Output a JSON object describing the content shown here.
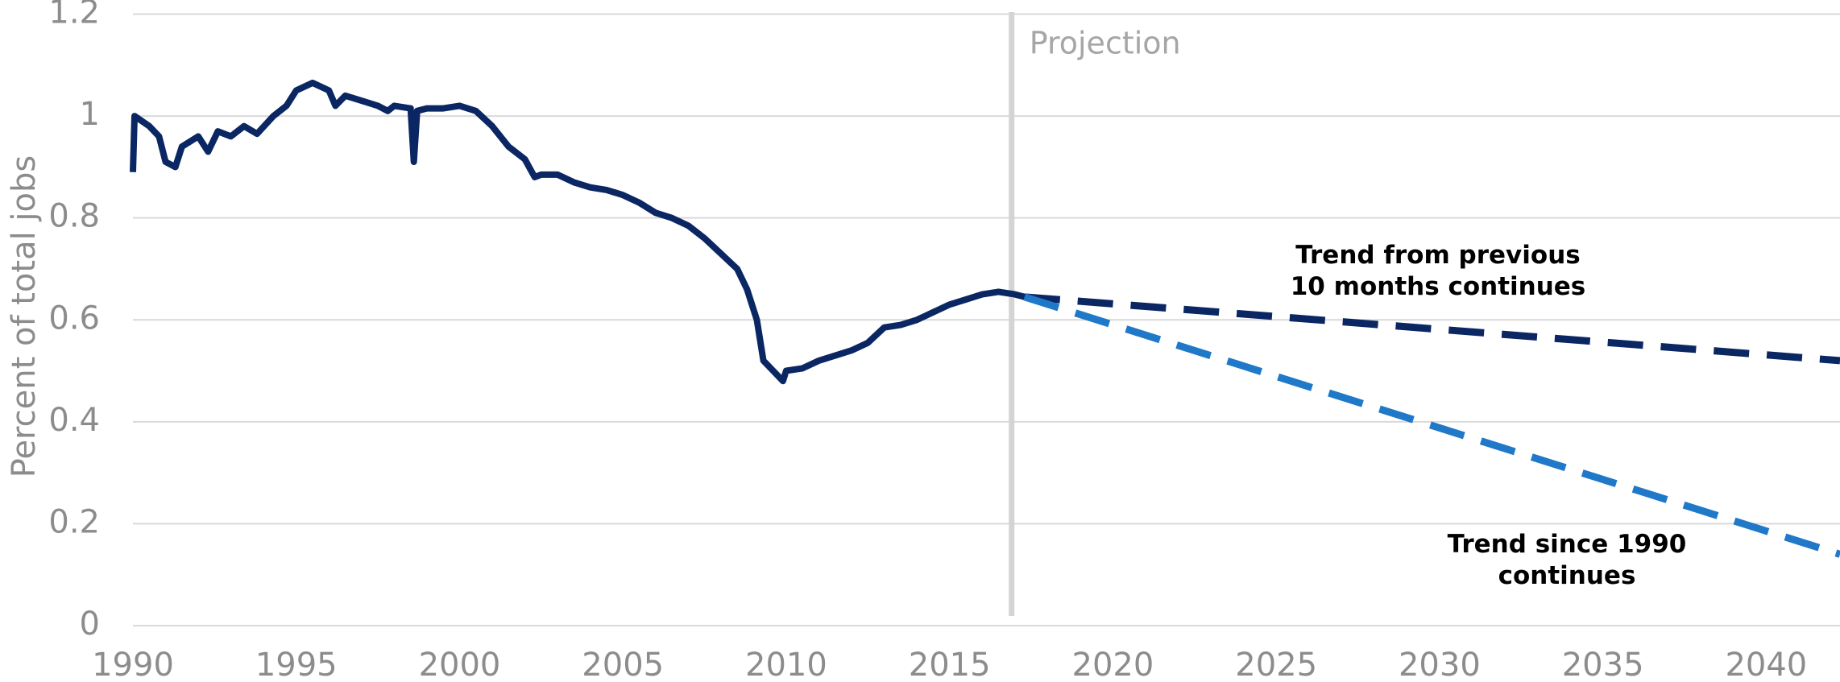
{
  "chart_data": {
    "type": "line",
    "y_label": "Percent of total jobs",
    "xlim": [
      1990,
      2042.26
    ],
    "xticks": [
      1990,
      1995,
      2000,
      2005,
      2010,
      2015,
      2020,
      2025,
      2030,
      2035,
      2040
    ],
    "ylim": [
      0,
      1.2
    ],
    "yticks": [
      0,
      0.2,
      0.4,
      0.6,
      0.8,
      1,
      1.2
    ],
    "grid": true,
    "projection": {
      "label": "Projection",
      "x": 2016.9
    },
    "series": [
      {
        "color": "#0b2763",
        "dash": false,
        "x": [
          1990.0,
          1990.05,
          1990.5,
          1990.8,
          1991.0,
          1991.3,
          1991.5,
          1992.0,
          1992.3,
          1992.6,
          1993.0,
          1993.4,
          1993.8,
          1994.3,
          1994.7,
          1995.0,
          1995.5,
          1996.0,
          1996.2,
          1996.5,
          1997.0,
          1997.5,
          1997.8,
          1998.0,
          1998.5,
          1998.6,
          1998.7,
          1999.0,
          1999.5,
          2000.0,
          2000.5,
          2001.0,
          2001.5,
          2002.0,
          2002.3,
          2002.5,
          2003.0,
          2003.5,
          2004.0,
          2004.5,
          2005.0,
          2005.5,
          2006.0,
          2006.5,
          2007.0,
          2007.5,
          2008.0,
          2008.5,
          2008.8,
          2009.1,
          2009.3,
          2009.6,
          2009.9,
          2010.0,
          2010.5,
          2011.0,
          2011.5,
          2012.0,
          2012.5,
          2013.0,
          2013.5,
          2014.0,
          2014.5,
          2015.0,
          2015.5,
          2016.0,
          2016.5,
          2017.0,
          2017.3
        ],
        "values": [
          0.89,
          1.0,
          0.98,
          0.96,
          0.91,
          0.9,
          0.94,
          0.96,
          0.93,
          0.97,
          0.96,
          0.98,
          0.965,
          1.0,
          1.02,
          1.05,
          1.065,
          1.05,
          1.02,
          1.04,
          1.03,
          1.02,
          1.01,
          1.02,
          1.015,
          0.91,
          1.01,
          1.015,
          1.015,
          1.02,
          1.01,
          0.98,
          0.94,
          0.915,
          0.88,
          0.885,
          0.885,
          0.87,
          0.86,
          0.855,
          0.845,
          0.83,
          0.81,
          0.8,
          0.785,
          0.76,
          0.73,
          0.7,
          0.66,
          0.6,
          0.52,
          0.5,
          0.48,
          0.5,
          0.505,
          0.52,
          0.53,
          0.54,
          0.555,
          0.585,
          0.59,
          0.6,
          0.615,
          0.63,
          0.64,
          0.65,
          0.655,
          0.65,
          0.645
        ]
      },
      {
        "name": "Trend from previous 10 months continues",
        "color": "#0b2763",
        "dash": true,
        "x": [
          2017.3,
          2042.26
        ],
        "values": [
          0.645,
          0.52
        ]
      },
      {
        "name": "Trend since 1990 continues",
        "color": "#1f78c8",
        "dash": true,
        "x": [
          2017.3,
          2042.26
        ],
        "values": [
          0.645,
          0.14
        ]
      }
    ]
  }
}
